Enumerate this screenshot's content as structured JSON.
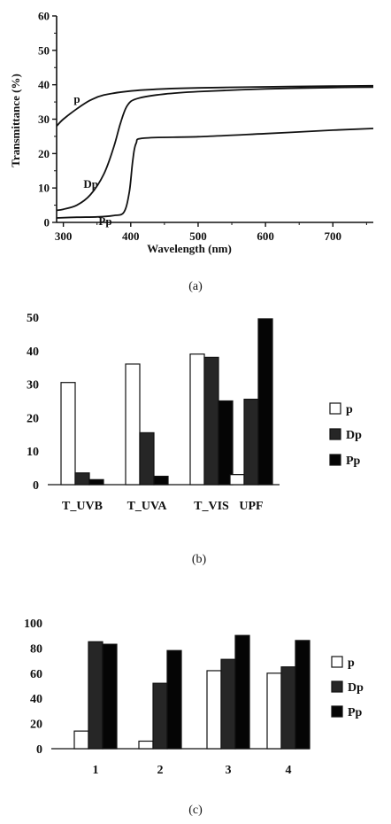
{
  "chart_data": [
    {
      "type": "line",
      "panel_caption": "(a)",
      "xlabel": "Wavelength  (nm)",
      "ylabel": "Transmittance (%)",
      "xlim": [
        290,
        760
      ],
      "ylim": [
        0,
        60
      ],
      "xticks": [
        300,
        400,
        500,
        600,
        700
      ],
      "yticks": [
        0,
        10,
        20,
        30,
        40,
        50,
        60
      ],
      "series": [
        {
          "name": "p",
          "points": [
            [
              290,
              28
            ],
            [
              300,
              30
            ],
            [
              320,
              33
            ],
            [
              340,
              35.5
            ],
            [
              360,
              37
            ],
            [
              400,
              38.2
            ],
            [
              450,
              38.8
            ],
            [
              500,
              39.1
            ],
            [
              600,
              39.4
            ],
            [
              700,
              39.6
            ],
            [
              760,
              39.7
            ]
          ]
        },
        {
          "name": "Dp",
          "points": [
            [
              290,
              3.5
            ],
            [
              300,
              3.8
            ],
            [
              320,
              5
            ],
            [
              340,
              8
            ],
            [
              360,
              14
            ],
            [
              375,
              22
            ],
            [
              385,
              29
            ],
            [
              395,
              34
            ],
            [
              410,
              36
            ],
            [
              450,
              37.3
            ],
            [
              500,
              38
            ],
            [
              600,
              38.8
            ],
            [
              700,
              39.2
            ],
            [
              760,
              39.3
            ]
          ]
        },
        {
          "name": "Pp",
          "points": [
            [
              290,
              1.3
            ],
            [
              320,
              1.5
            ],
            [
              350,
              1.6
            ],
            [
              375,
              2
            ],
            [
              390,
              3
            ],
            [
              398,
              9
            ],
            [
              403,
              18
            ],
            [
              408,
              23
            ],
            [
              420,
              24.5
            ],
            [
              500,
              24.9
            ],
            [
              600,
              25.8
            ],
            [
              700,
              26.8
            ],
            [
              760,
              27.3
            ]
          ]
        }
      ]
    },
    {
      "type": "bar",
      "panel_caption": "(b)",
      "categories": [
        "T_UVB",
        "T_UVA",
        "T_VIS",
        "UPF"
      ],
      "ylim": [
        0,
        50
      ],
      "yticks": [
        0,
        10,
        20,
        30,
        40,
        50
      ],
      "series": [
        {
          "name": "p",
          "values": [
            30.5,
            36,
            39,
            3
          ]
        },
        {
          "name": "Dp",
          "values": [
            3.5,
            15.5,
            38,
            25.5
          ]
        },
        {
          "name": "Pp",
          "values": [
            1.5,
            2.5,
            25,
            49.5
          ]
        }
      ]
    },
    {
      "type": "bar",
      "panel_caption": "(c)",
      "categories": [
        "1",
        "2",
        "3",
        "4"
      ],
      "ylim": [
        0,
        100
      ],
      "yticks": [
        0,
        20,
        40,
        60,
        80,
        100
      ],
      "series": [
        {
          "name": "p",
          "values": [
            14,
            6,
            62,
            60
          ]
        },
        {
          "name": "Dp",
          "values": [
            85,
            52,
            71,
            65
          ]
        },
        {
          "name": "Pp",
          "values": [
            83,
            78,
            90,
            86
          ]
        }
      ]
    }
  ],
  "colors": {
    "p": "#ffffff",
    "Dp": "#262626",
    "Pp": "#050505",
    "axis": "#111111"
  }
}
